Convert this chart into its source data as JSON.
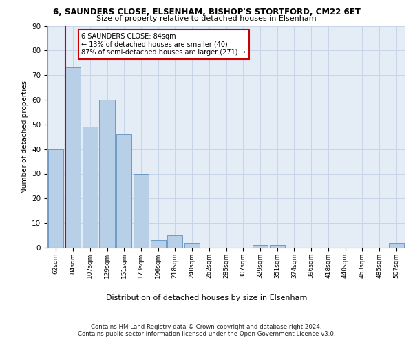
{
  "title1": "6, SAUNDERS CLOSE, ELSENHAM, BISHOP'S STORTFORD, CM22 6ET",
  "title2": "Size of property relative to detached houses in Elsenham",
  "xlabel": "Distribution of detached houses by size in Elsenham",
  "ylabel": "Number of detached properties",
  "categories": [
    "62sqm",
    "84sqm",
    "107sqm",
    "129sqm",
    "151sqm",
    "173sqm",
    "196sqm",
    "218sqm",
    "240sqm",
    "262sqm",
    "285sqm",
    "307sqm",
    "329sqm",
    "351sqm",
    "374sqm",
    "396sqm",
    "418sqm",
    "440sqm",
    "463sqm",
    "485sqm",
    "507sqm"
  ],
  "values": [
    40,
    73,
    49,
    60,
    46,
    30,
    3,
    5,
    2,
    0,
    0,
    0,
    1,
    1,
    0,
    0,
    0,
    0,
    0,
    0,
    2
  ],
  "bar_color": "#b8cfe8",
  "bar_edge_color": "#6090c0",
  "red_line_color": "#cc0000",
  "annotation_box_text": "6 SAUNDERS CLOSE: 84sqm\n← 13% of detached houses are smaller (40)\n87% of semi-detached houses are larger (271) →",
  "annotation_box_color": "#ffffff",
  "annotation_box_edge_color": "#cc0000",
  "ylim": [
    0,
    90
  ],
  "yticks": [
    0,
    10,
    20,
    30,
    40,
    50,
    60,
    70,
    80,
    90
  ],
  "grid_color": "#c8d4e8",
  "bg_color": "#e4ecf6",
  "footer1": "Contains HM Land Registry data © Crown copyright and database right 2024.",
  "footer2": "Contains public sector information licensed under the Open Government Licence v3.0."
}
